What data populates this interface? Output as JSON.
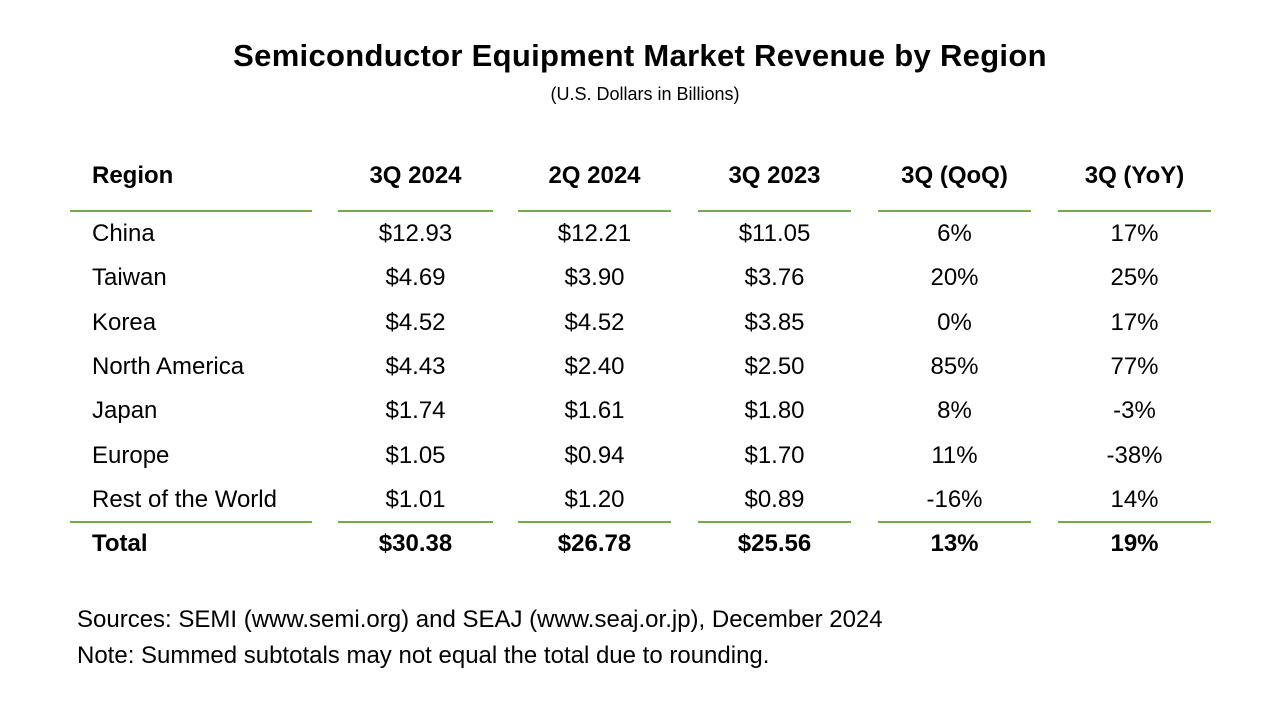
{
  "title": "Semiconductor Equipment Market Revenue by Region",
  "subtitle": "(U.S. Dollars in Billions)",
  "columns": [
    "Region",
    "3Q 2024",
    "2Q 2024",
    "3Q 2023",
    "3Q (QoQ)",
    "3Q (YoY)"
  ],
  "rows": [
    [
      "China",
      "$12.93",
      "$12.21",
      "$11.05",
      "6%",
      "17%"
    ],
    [
      "Taiwan",
      "$4.69",
      "$3.90",
      "$3.76",
      "20%",
      "25%"
    ],
    [
      "Korea",
      "$4.52",
      "$4.52",
      "$3.85",
      "0%",
      "17%"
    ],
    [
      "North America",
      "$4.43",
      "$2.40",
      "$2.50",
      "85%",
      "77%"
    ],
    [
      "Japan",
      "$1.74",
      "$1.61",
      "$1.80",
      "8%",
      "-3%"
    ],
    [
      "Europe",
      "$1.05",
      "$0.94",
      "$1.70",
      "11%",
      "-38%"
    ],
    [
      "Rest of the World",
      "$1.01",
      "$1.20",
      "$0.89",
      "-16%",
      "14%"
    ]
  ],
  "total": [
    "Total",
    "$30.38",
    "$26.78",
    "$25.56",
    "13%",
    "19%"
  ],
  "sources": "Sources: SEMI (www.semi.org) and SEAJ (www.seaj.or.jp), December 2024",
  "note": "Note: Summed subtotals may not equal the total due to rounding.",
  "colors": {
    "rule": "#70ad47",
    "text": "#000000",
    "background": "#ffffff"
  }
}
